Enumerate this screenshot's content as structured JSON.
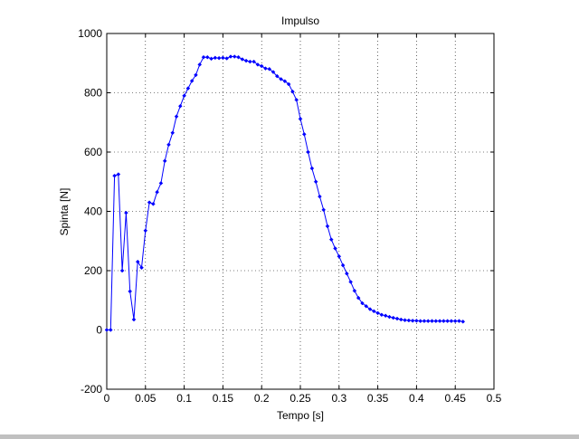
{
  "chart_data": {
    "type": "line",
    "title": "Impulso",
    "xlabel": "Tempo [s]",
    "ylabel": "Spinta [N]",
    "xlim": [
      0,
      0.5
    ],
    "ylim": [
      -200,
      1000
    ],
    "xticks": [
      0,
      0.05,
      0.1,
      0.15,
      0.2,
      0.25,
      0.3,
      0.35,
      0.4,
      0.45,
      0.5
    ],
    "xtick_labels": [
      "0",
      "0.05",
      "0.1",
      "0.15",
      "0.2",
      "0.25",
      "0.3",
      "0.35",
      "0.4",
      "0.45",
      "0.5"
    ],
    "yticks": [
      -200,
      0,
      200,
      400,
      600,
      800,
      1000
    ],
    "ytick_labels": [
      "-200",
      "0",
      "200",
      "400",
      "600",
      "800",
      "1000"
    ],
    "grid": true,
    "line_color": "#0000ff",
    "marker": "point",
    "series": [
      {
        "x": [
          0.0,
          0.005,
          0.01,
          0.015,
          0.02,
          0.025,
          0.03,
          0.035,
          0.04,
          0.045,
          0.05,
          0.055,
          0.06,
          0.065,
          0.07,
          0.075,
          0.08,
          0.085,
          0.09,
          0.095,
          0.1,
          0.105,
          0.11,
          0.115,
          0.12,
          0.125,
          0.13,
          0.135,
          0.14,
          0.145,
          0.15,
          0.155,
          0.16,
          0.165,
          0.17,
          0.175,
          0.18,
          0.185,
          0.19,
          0.195,
          0.2,
          0.205,
          0.21,
          0.215,
          0.22,
          0.225,
          0.23,
          0.235,
          0.24,
          0.245,
          0.25,
          0.255,
          0.26,
          0.265,
          0.27,
          0.275,
          0.28,
          0.285,
          0.29,
          0.295,
          0.3,
          0.305,
          0.31,
          0.315,
          0.32,
          0.325,
          0.33,
          0.335,
          0.34,
          0.345,
          0.35,
          0.355,
          0.36,
          0.365,
          0.37,
          0.375,
          0.38,
          0.385,
          0.39,
          0.395,
          0.4,
          0.405,
          0.41,
          0.415,
          0.42,
          0.425,
          0.43,
          0.435,
          0.44,
          0.445,
          0.45,
          0.455,
          0.46
        ],
        "y": [
          0,
          0,
          520,
          525,
          200,
          395,
          130,
          35,
          230,
          210,
          335,
          430,
          425,
          465,
          495,
          570,
          625,
          665,
          720,
          755,
          790,
          815,
          840,
          860,
          895,
          920,
          920,
          915,
          918,
          917,
          918,
          916,
          922,
          922,
          920,
          913,
          908,
          905,
          905,
          895,
          890,
          882,
          880,
          870,
          856,
          846,
          839,
          829,
          804,
          776,
          712,
          660,
          600,
          545,
          500,
          450,
          405,
          350,
          305,
          275,
          248,
          218,
          190,
          162,
          132,
          108,
          90,
          80,
          70,
          63,
          57,
          51,
          48,
          44,
          41,
          38,
          35,
          33,
          32,
          31,
          31,
          30,
          30,
          30,
          30,
          30,
          30,
          30,
          30,
          30,
          30,
          30,
          28
        ]
      }
    ]
  }
}
